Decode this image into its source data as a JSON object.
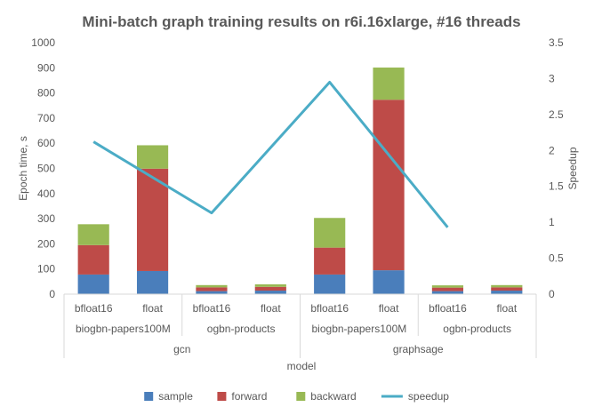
{
  "chart_data": {
    "type": "bar",
    "stacked": true,
    "title": "Mini-batch graph training results on r6i.16xlarge, #16 threads",
    "xlabel": "model",
    "ylabel": "Epoch time, s",
    "y2label": "Speedup",
    "ylim": [
      0,
      1000
    ],
    "y2lim": [
      0,
      3.5
    ],
    "yticks": [
      "0",
      "100",
      "200",
      "300",
      "400",
      "500",
      "600",
      "700",
      "800",
      "900",
      "1000"
    ],
    "y2ticks": [
      "0",
      "0.5",
      "1",
      "1.5",
      "2",
      "2.5",
      "3",
      "3.5"
    ],
    "grid": false,
    "legend_position": "bottom",
    "categories": [
      "bfloat16",
      "float",
      "bfloat16",
      "float",
      "bfloat16",
      "float",
      "bfloat16",
      "float"
    ],
    "datasets": [
      {
        "label": "biogbn-papers100M",
        "model": "gcn"
      },
      {
        "label": "ogbn-products",
        "model": "gcn"
      },
      {
        "label": "biogbn-papers100M",
        "model": "graphsage"
      },
      {
        "label": "ogbn-products",
        "model": "graphsage"
      }
    ],
    "models": [
      "gcn",
      "graphsage"
    ],
    "series": [
      {
        "name": "sample",
        "axis": "left",
        "kind": "bar",
        "color": "#4a7ebb",
        "values": [
          78,
          92,
          12,
          14,
          78,
          95,
          12,
          14
        ]
      },
      {
        "name": "forward",
        "axis": "left",
        "kind": "bar",
        "color": "#be4b48",
        "values": [
          117,
          407,
          15,
          15,
          107,
          678,
          14,
          13
        ]
      },
      {
        "name": "backward",
        "axis": "left",
        "kind": "bar",
        "color": "#98b954",
        "values": [
          83,
          93,
          9,
          10,
          118,
          128,
          9,
          9
        ]
      },
      {
        "name": "speedup",
        "axis": "right",
        "kind": "line",
        "color": "#4bacc6",
        "values": [
          2.12,
          null,
          1.13,
          null,
          2.95,
          null,
          0.93,
          null
        ]
      }
    ]
  }
}
